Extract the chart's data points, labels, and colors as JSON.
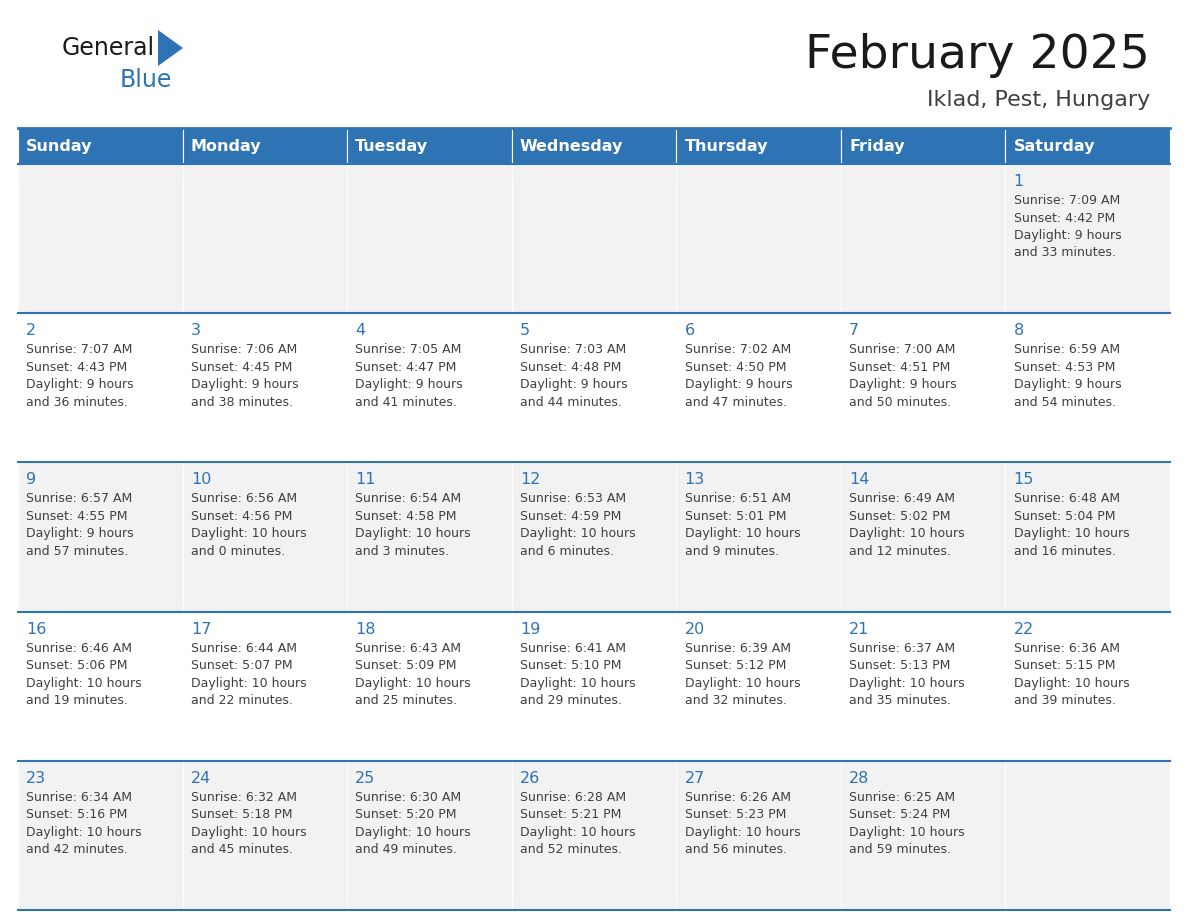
{
  "title": "February 2025",
  "subtitle": "Iklad, Pest, Hungary",
  "days_of_week": [
    "Sunday",
    "Monday",
    "Tuesday",
    "Wednesday",
    "Thursday",
    "Friday",
    "Saturday"
  ],
  "header_bg": "#2E74B5",
  "header_text_color": "#FFFFFF",
  "cell_bg_light": "#F2F2F2",
  "cell_bg_white": "#FFFFFF",
  "day_num_color": "#2E74B5",
  "text_color": "#404040",
  "calendar_data": [
    [
      null,
      null,
      null,
      null,
      null,
      null,
      {
        "day": "1",
        "sunrise": "7:09 AM",
        "sunset": "4:42 PM",
        "daylight_h": "9 hours",
        "daylight_m": "and 33 minutes."
      }
    ],
    [
      {
        "day": "2",
        "sunrise": "7:07 AM",
        "sunset": "4:43 PM",
        "daylight_h": "9 hours",
        "daylight_m": "and 36 minutes."
      },
      {
        "day": "3",
        "sunrise": "7:06 AM",
        "sunset": "4:45 PM",
        "daylight_h": "9 hours",
        "daylight_m": "and 38 minutes."
      },
      {
        "day": "4",
        "sunrise": "7:05 AM",
        "sunset": "4:47 PM",
        "daylight_h": "9 hours",
        "daylight_m": "and 41 minutes."
      },
      {
        "day": "5",
        "sunrise": "7:03 AM",
        "sunset": "4:48 PM",
        "daylight_h": "9 hours",
        "daylight_m": "and 44 minutes."
      },
      {
        "day": "6",
        "sunrise": "7:02 AM",
        "sunset": "4:50 PM",
        "daylight_h": "9 hours",
        "daylight_m": "and 47 minutes."
      },
      {
        "day": "7",
        "sunrise": "7:00 AM",
        "sunset": "4:51 PM",
        "daylight_h": "9 hours",
        "daylight_m": "and 50 minutes."
      },
      {
        "day": "8",
        "sunrise": "6:59 AM",
        "sunset": "4:53 PM",
        "daylight_h": "9 hours",
        "daylight_m": "and 54 minutes."
      }
    ],
    [
      {
        "day": "9",
        "sunrise": "6:57 AM",
        "sunset": "4:55 PM",
        "daylight_h": "9 hours",
        "daylight_m": "and 57 minutes."
      },
      {
        "day": "10",
        "sunrise": "6:56 AM",
        "sunset": "4:56 PM",
        "daylight_h": "10 hours",
        "daylight_m": "and 0 minutes."
      },
      {
        "day": "11",
        "sunrise": "6:54 AM",
        "sunset": "4:58 PM",
        "daylight_h": "10 hours",
        "daylight_m": "and 3 minutes."
      },
      {
        "day": "12",
        "sunrise": "6:53 AM",
        "sunset": "4:59 PM",
        "daylight_h": "10 hours",
        "daylight_m": "and 6 minutes."
      },
      {
        "day": "13",
        "sunrise": "6:51 AM",
        "sunset": "5:01 PM",
        "daylight_h": "10 hours",
        "daylight_m": "and 9 minutes."
      },
      {
        "day": "14",
        "sunrise": "6:49 AM",
        "sunset": "5:02 PM",
        "daylight_h": "10 hours",
        "daylight_m": "and 12 minutes."
      },
      {
        "day": "15",
        "sunrise": "6:48 AM",
        "sunset": "5:04 PM",
        "daylight_h": "10 hours",
        "daylight_m": "and 16 minutes."
      }
    ],
    [
      {
        "day": "16",
        "sunrise": "6:46 AM",
        "sunset": "5:06 PM",
        "daylight_h": "10 hours",
        "daylight_m": "and 19 minutes."
      },
      {
        "day": "17",
        "sunrise": "6:44 AM",
        "sunset": "5:07 PM",
        "daylight_h": "10 hours",
        "daylight_m": "and 22 minutes."
      },
      {
        "day": "18",
        "sunrise": "6:43 AM",
        "sunset": "5:09 PM",
        "daylight_h": "10 hours",
        "daylight_m": "and 25 minutes."
      },
      {
        "day": "19",
        "sunrise": "6:41 AM",
        "sunset": "5:10 PM",
        "daylight_h": "10 hours",
        "daylight_m": "and 29 minutes."
      },
      {
        "day": "20",
        "sunrise": "6:39 AM",
        "sunset": "5:12 PM",
        "daylight_h": "10 hours",
        "daylight_m": "and 32 minutes."
      },
      {
        "day": "21",
        "sunrise": "6:37 AM",
        "sunset": "5:13 PM",
        "daylight_h": "10 hours",
        "daylight_m": "and 35 minutes."
      },
      {
        "day": "22",
        "sunrise": "6:36 AM",
        "sunset": "5:15 PM",
        "daylight_h": "10 hours",
        "daylight_m": "and 39 minutes."
      }
    ],
    [
      {
        "day": "23",
        "sunrise": "6:34 AM",
        "sunset": "5:16 PM",
        "daylight_h": "10 hours",
        "daylight_m": "and 42 minutes."
      },
      {
        "day": "24",
        "sunrise": "6:32 AM",
        "sunset": "5:18 PM",
        "daylight_h": "10 hours",
        "daylight_m": "and 45 minutes."
      },
      {
        "day": "25",
        "sunrise": "6:30 AM",
        "sunset": "5:20 PM",
        "daylight_h": "10 hours",
        "daylight_m": "and 49 minutes."
      },
      {
        "day": "26",
        "sunrise": "6:28 AM",
        "sunset": "5:21 PM",
        "daylight_h": "10 hours",
        "daylight_m": "and 52 minutes."
      },
      {
        "day": "27",
        "sunrise": "6:26 AM",
        "sunset": "5:23 PM",
        "daylight_h": "10 hours",
        "daylight_m": "and 56 minutes."
      },
      {
        "day": "28",
        "sunrise": "6:25 AM",
        "sunset": "5:24 PM",
        "daylight_h": "10 hours",
        "daylight_m": "and 59 minutes."
      },
      null
    ]
  ]
}
